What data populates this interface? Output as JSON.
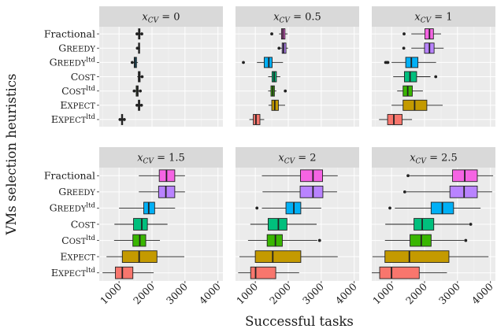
{
  "chart_data": {
    "type": "boxplot-facets",
    "xlabel": "Successful tasks",
    "ylabel": "VMs selection heuristics",
    "xlim": [
      400,
      4150
    ],
    "x_ticks": [
      1000,
      2000,
      3000,
      4000
    ],
    "grid": true,
    "layout": {
      "rows": 2,
      "cols": 3
    },
    "heuristics": [
      {
        "key": "fractional",
        "main": "Fractional",
        "smallcaps": false,
        "sup": "",
        "color": "#f564e3"
      },
      {
        "key": "greedy",
        "main": "Greedy",
        "smallcaps": true,
        "sup": "",
        "color": "#b983ff"
      },
      {
        "key": "greedy_ltd",
        "main": "Greedy",
        "smallcaps": true,
        "sup": "ltd",
        "color": "#00b0f6"
      },
      {
        "key": "cost",
        "main": "Cost",
        "smallcaps": true,
        "sup": "",
        "color": "#00bf7d"
      },
      {
        "key": "cost_ltd",
        "main": "Cost",
        "smallcaps": true,
        "sup": "ltd",
        "color": "#39b600"
      },
      {
        "key": "expect",
        "main": "Expect",
        "smallcaps": true,
        "sup": "",
        "color": "#c49a00"
      },
      {
        "key": "expect_ltd",
        "main": "Expect",
        "smallcaps": true,
        "sup": "ltd",
        "color": "#f8766d"
      }
    ],
    "panels": [
      {
        "strip_var": "x",
        "strip_sub": "CV",
        "strip_value": "= 0",
        "boxes": [
          {
            "min": 1560,
            "q1": 1590,
            "median": 1610,
            "q3": 1635,
            "max": 1665,
            "outliers": [
              1545,
              1690
            ]
          },
          {
            "min": 1570,
            "q1": 1590,
            "median": 1605,
            "q3": 1620,
            "max": 1640,
            "outliers": [
              1555
            ]
          },
          {
            "min": 1420,
            "q1": 1460,
            "median": 1490,
            "q3": 1530,
            "max": 1575,
            "outliers": [
              1400
            ]
          },
          {
            "min": 1550,
            "q1": 1585,
            "median": 1610,
            "q3": 1640,
            "max": 1680,
            "outliers": [
              1700
            ]
          },
          {
            "min": 1480,
            "q1": 1520,
            "median": 1550,
            "q3": 1580,
            "max": 1620,
            "outliers": [
              1460,
              1645
            ]
          },
          {
            "min": 1560,
            "q1": 1585,
            "median": 1610,
            "q3": 1630,
            "max": 1660,
            "outliers": [
              1545,
              1680
            ]
          },
          {
            "min": 1050,
            "q1": 1075,
            "median": 1090,
            "q3": 1110,
            "max": 1140,
            "outliers": [
              1030,
              1160
            ]
          }
        ]
      },
      {
        "strip_var": "x",
        "strip_sub": "CV",
        "strip_value": "= 0.5",
        "boxes": [
          {
            "min": 1720,
            "q1": 1795,
            "median": 1840,
            "q3": 1900,
            "max": 1980,
            "outliers": [
              1500
            ]
          },
          {
            "min": 1745,
            "q1": 1815,
            "median": 1860,
            "q3": 1930,
            "max": 1995,
            "outliers": [
              1720
            ]
          },
          {
            "min": 1050,
            "q1": 1270,
            "median": 1410,
            "q3": 1510,
            "max": 1840,
            "outliers": [
              640
            ]
          },
          {
            "min": 1390,
            "q1": 1510,
            "median": 1570,
            "q3": 1640,
            "max": 1760,
            "outliers": []
          },
          {
            "min": 1390,
            "q1": 1475,
            "median": 1530,
            "q3": 1580,
            "max": 1640,
            "outliers": [
              1910
            ]
          },
          {
            "min": 1400,
            "q1": 1500,
            "median": 1590,
            "q3": 1700,
            "max": 1905,
            "outliers": []
          },
          {
            "min": 820,
            "q1": 940,
            "median": 1020,
            "q3": 1140,
            "max": 1270,
            "outliers": []
          }
        ]
      },
      {
        "strip_var": "x",
        "strip_sub": "CV",
        "strip_value": "= 1",
        "boxes": [
          {
            "min": 1600,
            "q1": 2010,
            "median": 2150,
            "q3": 2270,
            "max": 2500,
            "outliers": [
              1380
            ]
          },
          {
            "min": 1600,
            "q1": 2000,
            "median": 2150,
            "q3": 2290,
            "max": 2580,
            "outliers": [
              1370
            ]
          },
          {
            "min": 1000,
            "q1": 1430,
            "median": 1600,
            "q3": 1800,
            "max": 2350,
            "outliers": [
              820,
              860,
              890
            ]
          },
          {
            "min": 1050,
            "q1": 1390,
            "median": 1560,
            "q3": 1760,
            "max": 2180,
            "outliers": [
              2340
            ]
          },
          {
            "min": 1170,
            "q1": 1350,
            "median": 1490,
            "q3": 1630,
            "max": 1950,
            "outliers": []
          },
          {
            "min": 1000,
            "q1": 1350,
            "median": 1700,
            "q3": 2070,
            "max": 2550,
            "outliers": []
          },
          {
            "min": 620,
            "q1": 880,
            "median": 1070,
            "q3": 1320,
            "max": 1620,
            "outliers": []
          }
        ]
      },
      {
        "strip_var": "x",
        "strip_sub": "CV",
        "strip_value": "= 1.5",
        "boxes": [
          {
            "min": 1600,
            "q1": 2220,
            "median": 2440,
            "q3": 2690,
            "max": 3000,
            "outliers": []
          },
          {
            "min": 1600,
            "q1": 2200,
            "median": 2420,
            "q3": 2690,
            "max": 3000,
            "outliers": []
          },
          {
            "min": 1000,
            "q1": 1750,
            "median": 1900,
            "q3": 2080,
            "max": 2700,
            "outliers": []
          },
          {
            "min": 860,
            "q1": 1440,
            "median": 1690,
            "q3": 1860,
            "max": 2470,
            "outliers": []
          },
          {
            "min": 850,
            "q1": 1420,
            "median": 1630,
            "q3": 1810,
            "max": 2240,
            "outliers": []
          },
          {
            "min": 620,
            "q1": 1100,
            "median": 1610,
            "q3": 2150,
            "max": 2980,
            "outliers": []
          },
          {
            "min": 500,
            "q1": 890,
            "median": 1100,
            "q3": 1420,
            "max": 2050,
            "outliers": []
          }
        ]
      },
      {
        "strip_var": "x",
        "strip_sub": "CV",
        "strip_value": "= 2",
        "boxes": [
          {
            "min": 1200,
            "q1": 2370,
            "median": 2750,
            "q3": 3040,
            "max": 3500,
            "outliers": []
          },
          {
            "min": 1220,
            "q1": 2360,
            "median": 2750,
            "q3": 3050,
            "max": 3480,
            "outliers": []
          },
          {
            "min": 1200,
            "q1": 1930,
            "median": 2170,
            "q3": 2380,
            "max": 3000,
            "outliers": [
              1050
            ]
          },
          {
            "min": 850,
            "q1": 1390,
            "median": 1700,
            "q3": 1960,
            "max": 2860,
            "outliers": []
          },
          {
            "min": 780,
            "q1": 1360,
            "median": 1610,
            "q3": 1820,
            "max": 2880,
            "outliers": [
              2950
            ]
          },
          {
            "min": 520,
            "q1": 1000,
            "median": 1530,
            "q3": 2380,
            "max": 3500,
            "outliers": []
          },
          {
            "min": 480,
            "q1": 860,
            "median": 1010,
            "q3": 1620,
            "max": 2330,
            "outliers": []
          }
        ]
      },
      {
        "strip_var": "x",
        "strip_sub": "CV",
        "strip_value": "= 2.5",
        "boxes": [
          {
            "min": 1550,
            "q1": 2850,
            "median": 3220,
            "q3": 3600,
            "max": 4080,
            "outliers": [
              1500
            ]
          },
          {
            "min": 1450,
            "q1": 2770,
            "median": 3200,
            "q3": 3600,
            "max": 4050,
            "outliers": [
              1400
            ]
          },
          {
            "min": 1100,
            "q1": 2200,
            "median": 2540,
            "q3": 2880,
            "max": 3700,
            "outliers": [
              950
            ]
          },
          {
            "min": 810,
            "q1": 1680,
            "median": 1930,
            "q3": 2280,
            "max": 3350,
            "outliers": [
              3400
            ]
          },
          {
            "min": 800,
            "q1": 1560,
            "median": 1900,
            "q3": 2200,
            "max": 3200,
            "outliers": [
              3250
            ]
          },
          {
            "min": 420,
            "q1": 800,
            "median": 1540,
            "q3": 2740,
            "max": 3940,
            "outliers": []
          },
          {
            "min": 400,
            "q1": 640,
            "median": 1000,
            "q3": 1840,
            "max": 2680,
            "outliers": []
          }
        ]
      }
    ]
  }
}
